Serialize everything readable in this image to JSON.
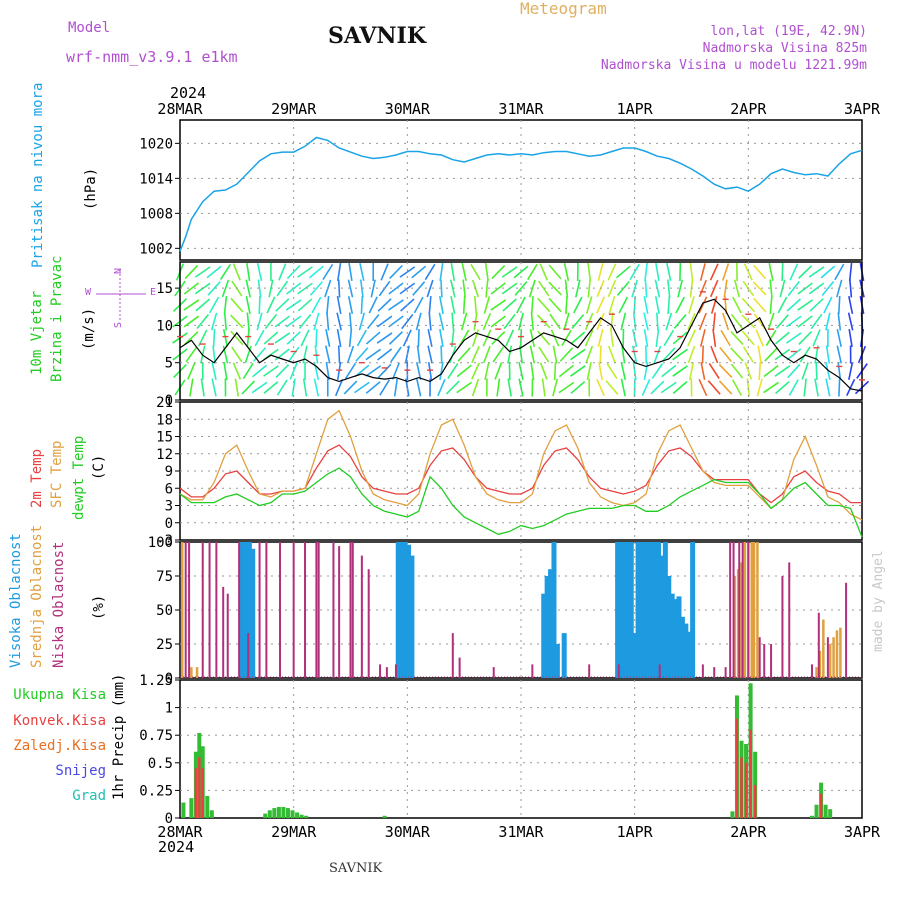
{
  "header": {
    "model_label": "Model",
    "model_name": "wrf-nmm_v3.9.1  e1km",
    "station": "SAVNIK",
    "meteogram": "Meteogram",
    "lonlat": "lon,lat (19E, 42.9N)",
    "alt1": "Nadmorska Visina 825m",
    "alt2": "Nadmorska Visina u modelu 1221.99m"
  },
  "footer": {
    "station": "SAVNIK",
    "watermark": "made by Angel"
  },
  "time_axis": {
    "year": "2024",
    "labels": [
      "28MAR",
      "29MAR",
      "30MAR",
      "31MAR",
      "1APR",
      "2APR",
      "3APR"
    ]
  },
  "colors": {
    "pressure": "#1aa3e6",
    "wind_speed": "#000000",
    "temp2m": "#e84040",
    "sfc_temp": "#e0a040",
    "dewpoint": "#22cc22",
    "high_cloud": "#1e9be0",
    "mid_cloud": "#e0a040",
    "low_cloud": "#b0307a",
    "total_precip": "#33bb33",
    "conv_precip": "#e84040"
  },
  "chart_data": [
    {
      "type": "line",
      "panel": "pressure",
      "ylabel_left": "Pritisak na nivou mora",
      "ylabel_unit": "(hPa)",
      "ylim": [
        1000,
        1024
      ],
      "yticks": [
        1002,
        1008,
        1014,
        1020
      ],
      "x_days": [
        0,
        0.05,
        0.1,
        0.2,
        0.3,
        0.4,
        0.5,
        0.6,
        0.7,
        0.8,
        0.9,
        1.0,
        1.1,
        1.2,
        1.3,
        1.4,
        1.5,
        1.6,
        1.7,
        1.8,
        1.9,
        2.0,
        2.1,
        2.2,
        2.3,
        2.4,
        2.5,
        2.6,
        2.7,
        2.8,
        2.9,
        3.0,
        3.1,
        3.2,
        3.3,
        3.4,
        3.5,
        3.6,
        3.7,
        3.8,
        3.9,
        4.0,
        4.1,
        4.2,
        4.3,
        4.4,
        4.5,
        4.6,
        4.7,
        4.8,
        4.9,
        5.0,
        5.1,
        5.2,
        5.3,
        5.4,
        5.5,
        5.6,
        5.7,
        5.8,
        5.9,
        6.0
      ],
      "values": [
        1001.5,
        1004,
        1007,
        1010,
        1011.8,
        1012,
        1013,
        1015,
        1017,
        1018.2,
        1018.5,
        1018.5,
        1019.5,
        1021,
        1020.5,
        1019.2,
        1018.5,
        1017.8,
        1017.4,
        1017.6,
        1018,
        1018.6,
        1018.6,
        1018.2,
        1018,
        1017.2,
        1016.8,
        1017.4,
        1018,
        1018.2,
        1018,
        1018.2,
        1018,
        1018.4,
        1018.6,
        1018.6,
        1018.2,
        1017.8,
        1018,
        1018.6,
        1019.2,
        1019.2,
        1018.6,
        1017.8,
        1017.4,
        1016.6,
        1015.6,
        1014.4,
        1013,
        1012.2,
        1012.5,
        1011.8,
        1013,
        1014.8,
        1015.6,
        1015,
        1014.6,
        1014.8,
        1014.4,
        1016.5,
        1018.2,
        1018.8
      ]
    },
    {
      "type": "line",
      "panel": "wind",
      "ylabel_left1": "10m Vjetar",
      "ylabel_left2": "Brzina i Pravac",
      "ylabel_unit": "(m/s)",
      "compass_labels": [
        "W",
        "E",
        "N",
        "S"
      ],
      "ylim": [
        0,
        18.5
      ],
      "yticks": [
        0,
        5,
        10,
        15
      ],
      "x_days": [
        0,
        0.1,
        0.2,
        0.3,
        0.4,
        0.5,
        0.6,
        0.7,
        0.8,
        0.9,
        1.0,
        1.1,
        1.2,
        1.3,
        1.4,
        1.5,
        1.6,
        1.7,
        1.8,
        1.9,
        2.0,
        2.1,
        2.2,
        2.3,
        2.4,
        2.5,
        2.6,
        2.7,
        2.8,
        2.9,
        3.0,
        3.1,
        3.2,
        3.3,
        3.4,
        3.5,
        3.6,
        3.7,
        3.8,
        3.9,
        4.0,
        4.1,
        4.2,
        4.3,
        4.4,
        4.5,
        4.6,
        4.7,
        4.8,
        4.9,
        5.0,
        5.1,
        5.2,
        5.3,
        5.4,
        5.5,
        5.6,
        5.7,
        5.8,
        5.9,
        6.0
      ],
      "values": [
        7,
        8,
        6,
        5,
        7,
        9,
        7,
        5,
        6,
        5.5,
        5,
        5.5,
        4.5,
        3,
        2.5,
        3,
        3.5,
        3,
        2.8,
        3,
        2.5,
        3,
        2.5,
        3.5,
        6,
        8,
        9,
        8.5,
        8,
        6.5,
        7,
        8,
        9,
        8.5,
        8,
        7,
        9,
        11,
        10,
        7,
        5,
        4.5,
        5,
        5.5,
        7,
        10,
        13,
        13.5,
        12,
        9,
        10,
        11,
        8,
        6,
        5,
        6,
        5.5,
        4,
        3,
        1.5,
        1.2
      ]
    },
    {
      "type": "line",
      "panel": "temperature",
      "ylabel_left1": "2m Temp",
      "ylabel_left2": "SFC Temp",
      "ylabel_left3": "dewpt Temp",
      "ylabel_unit": "(C)",
      "ylim": [
        -3,
        21
      ],
      "yticks": [
        -3,
        0,
        3,
        6,
        9,
        12,
        15,
        18,
        21
      ],
      "x_days": [
        0,
        0.1,
        0.2,
        0.3,
        0.4,
        0.5,
        0.6,
        0.7,
        0.8,
        0.9,
        1.0,
        1.1,
        1.2,
        1.3,
        1.4,
        1.5,
        1.6,
        1.7,
        1.8,
        1.9,
        2.0,
        2.1,
        2.2,
        2.3,
        2.4,
        2.5,
        2.6,
        2.7,
        2.8,
        2.9,
        3.0,
        3.1,
        3.2,
        3.3,
        3.4,
        3.5,
        3.6,
        3.7,
        3.8,
        3.9,
        4.0,
        4.1,
        4.2,
        4.3,
        4.4,
        4.5,
        4.6,
        4.7,
        4.8,
        4.9,
        5.0,
        5.1,
        5.2,
        5.3,
        5.4,
        5.5,
        5.6,
        5.7,
        5.8,
        5.9,
        6.0
      ],
      "series": [
        {
          "name": "2m Temp",
          "values": [
            6,
            4.5,
            4.5,
            6,
            8.5,
            9,
            7,
            5,
            5,
            5.5,
            5.5,
            6,
            9.5,
            12.5,
            13.5,
            11.5,
            8,
            6,
            5.5,
            5,
            5,
            6,
            10,
            12.5,
            13,
            11,
            8,
            6,
            5.5,
            5,
            5,
            6,
            10,
            12.5,
            13,
            11,
            8,
            6,
            5.5,
            5,
            5.5,
            6.5,
            10,
            12.5,
            13,
            11.5,
            9,
            7.5,
            7.5,
            7.5,
            7.5,
            5,
            3.5,
            5,
            8,
            9,
            7,
            5.5,
            5,
            3.5,
            3.5
          ]
        },
        {
          "name": "SFC Temp",
          "values": [
            5,
            4,
            4,
            7,
            12,
            13.5,
            9,
            5,
            4.5,
            5.5,
            5.5,
            6,
            12,
            18,
            19.5,
            15,
            9,
            5,
            4,
            3.5,
            3,
            5,
            12,
            17,
            18,
            13.5,
            8,
            5,
            4,
            3.5,
            3.5,
            5,
            12,
            16,
            17,
            13,
            7,
            4.5,
            3.5,
            3,
            3.5,
            5,
            12,
            16,
            17,
            13,
            9,
            7,
            6.5,
            6.5,
            6.5,
            4.5,
            2.5,
            4,
            11,
            15,
            10,
            4.5,
            3.5,
            1.5,
            0.5
          ]
        },
        {
          "name": "dewpt Temp",
          "values": [
            5,
            3.5,
            3.5,
            3.5,
            4.5,
            5,
            4,
            3,
            3.5,
            5,
            5,
            5.5,
            7,
            8.5,
            9.5,
            8,
            5,
            3,
            2,
            1.5,
            1,
            2,
            8,
            6,
            3,
            1,
            0,
            -1,
            -2,
            -1.5,
            -0.5,
            -1,
            -0.5,
            0.5,
            1.5,
            2,
            2.5,
            2.5,
            2.5,
            3,
            3,
            2,
            2,
            3,
            4.5,
            5.5,
            6.5,
            7.5,
            7,
            7,
            7,
            5,
            2.5,
            4,
            6,
            7,
            5,
            3,
            3,
            2.5,
            -2.5
          ]
        }
      ]
    },
    {
      "type": "bar",
      "panel": "clouds",
      "ylabel_left1": "Visoka Oblacnost",
      "ylabel_left2": "Srednja Oblacnost",
      "ylabel_left3": "Niska Oblacnost",
      "ylabel_unit": "(%)",
      "ylim": [
        0,
        100
      ],
      "yticks": [
        0,
        25,
        50,
        75,
        100
      ],
      "series": [
        {
          "name": "Visoka Oblacnost",
          "x_days": [
            0.55,
            0.58,
            0.61,
            0.64,
            1.92,
            1.95,
            1.98,
            2.01,
            2.04,
            3.2,
            3.23,
            3.26,
            3.29,
            3.32,
            3.38,
            3.85,
            3.88,
            3.91,
            3.94,
            3.97,
            4.0,
            4.03,
            4.06,
            4.09,
            4.12,
            4.15,
            4.18,
            4.21,
            4.24,
            4.27,
            4.3,
            4.33,
            4.36,
            4.39,
            4.42,
            4.45,
            4.48,
            4.51
          ],
          "values": [
            100,
            100,
            100,
            95,
            100,
            100,
            100,
            98,
            90,
            62,
            75,
            80,
            100,
            25,
            33,
            100,
            100,
            100,
            100,
            100,
            33,
            100,
            100,
            100,
            100,
            100,
            100,
            100,
            90,
            100,
            75,
            62,
            58,
            60,
            45,
            40,
            34,
            100
          ]
        },
        {
          "name": "Srednja Oblacnost",
          "x_days": [
            0.02,
            0.1,
            0.15,
            4.88,
            4.91,
            4.94,
            4.97,
            5.0,
            5.03,
            5.05,
            5.08,
            5.6,
            5.63,
            5.66,
            5.72,
            5.75,
            5.78,
            5.81
          ],
          "values": [
            100,
            8,
            8,
            75,
            80,
            85,
            100,
            100,
            100,
            100,
            100,
            8,
            20,
            43,
            25,
            30,
            35,
            37
          ]
        },
        {
          "name": "Niska Oblacnost",
          "x_days": [
            0.05,
            0.08,
            0.2,
            0.26,
            0.32,
            0.38,
            0.42,
            0.52,
            0.6,
            0.7,
            0.76,
            0.88,
            1.0,
            1.1,
            1.2,
            1.22,
            1.35,
            1.4,
            1.5,
            1.52,
            1.6,
            1.66,
            1.76,
            1.82,
            1.9,
            2.4,
            2.46,
            2.76,
            3.1,
            3.6,
            3.86,
            4.22,
            4.6,
            4.7,
            4.8,
            4.84,
            4.87,
            4.92,
            4.95,
            5.0,
            5.1,
            5.14,
            5.2,
            5.3,
            5.36,
            5.56,
            5.62,
            5.7,
            5.86
          ],
          "values": [
            100,
            100,
            100,
            100,
            100,
            67,
            62,
            100,
            33,
            100,
            100,
            100,
            100,
            100,
            100,
            100,
            100,
            97,
            100,
            100,
            90,
            80,
            10,
            8,
            10,
            33,
            15,
            8,
            10,
            10,
            10,
            10,
            10,
            8,
            8,
            100,
            100,
            100,
            100,
            100,
            30,
            25,
            25,
            75,
            85,
            10,
            48,
            30,
            70
          ]
        }
      ]
    },
    {
      "type": "bar",
      "panel": "precipitation",
      "legend": [
        "Ukupna Kisa",
        "Konvek.Kisa",
        "Zaledj.Kisa",
        "Snijeg",
        "Grad"
      ],
      "ylabel_unit": "1hr Precip (mm)",
      "ylim": [
        0,
        1.25
      ],
      "yticks": [
        0,
        0.25,
        0.5,
        0.75,
        1,
        1.25
      ],
      "series": [
        {
          "name": "Ukupna Kisa",
          "x_days": [
            0.03,
            0.1,
            0.14,
            0.17,
            0.2,
            0.24,
            0.28,
            0.75,
            0.79,
            0.83,
            0.87,
            0.91,
            0.95,
            0.99,
            1.03,
            1.07,
            1.11,
            1.8,
            4.86,
            4.9,
            4.94,
            4.98,
            5.02,
            5.06,
            5.56,
            5.6,
            5.64,
            5.68,
            5.72
          ],
          "values": [
            0.14,
            0.18,
            0.6,
            0.77,
            0.65,
            0.2,
            0.07,
            0.04,
            0.07,
            0.09,
            0.1,
            0.1,
            0.09,
            0.07,
            0.05,
            0.03,
            0.02,
            0.02,
            0.06,
            1.11,
            0.7,
            0.67,
            1.22,
            0.6,
            0.02,
            0.12,
            0.32,
            0.12,
            0.08
          ]
        },
        {
          "name": "Konvek.Kisa",
          "x_days": [
            0.14,
            0.17,
            0.2,
            4.9,
            4.94,
            4.98,
            5.02,
            5.06,
            5.64
          ],
          "values": [
            0.45,
            0.55,
            0.45,
            0.9,
            0.55,
            0.5,
            0.8,
            0.3,
            0.22
          ]
        }
      ]
    }
  ]
}
